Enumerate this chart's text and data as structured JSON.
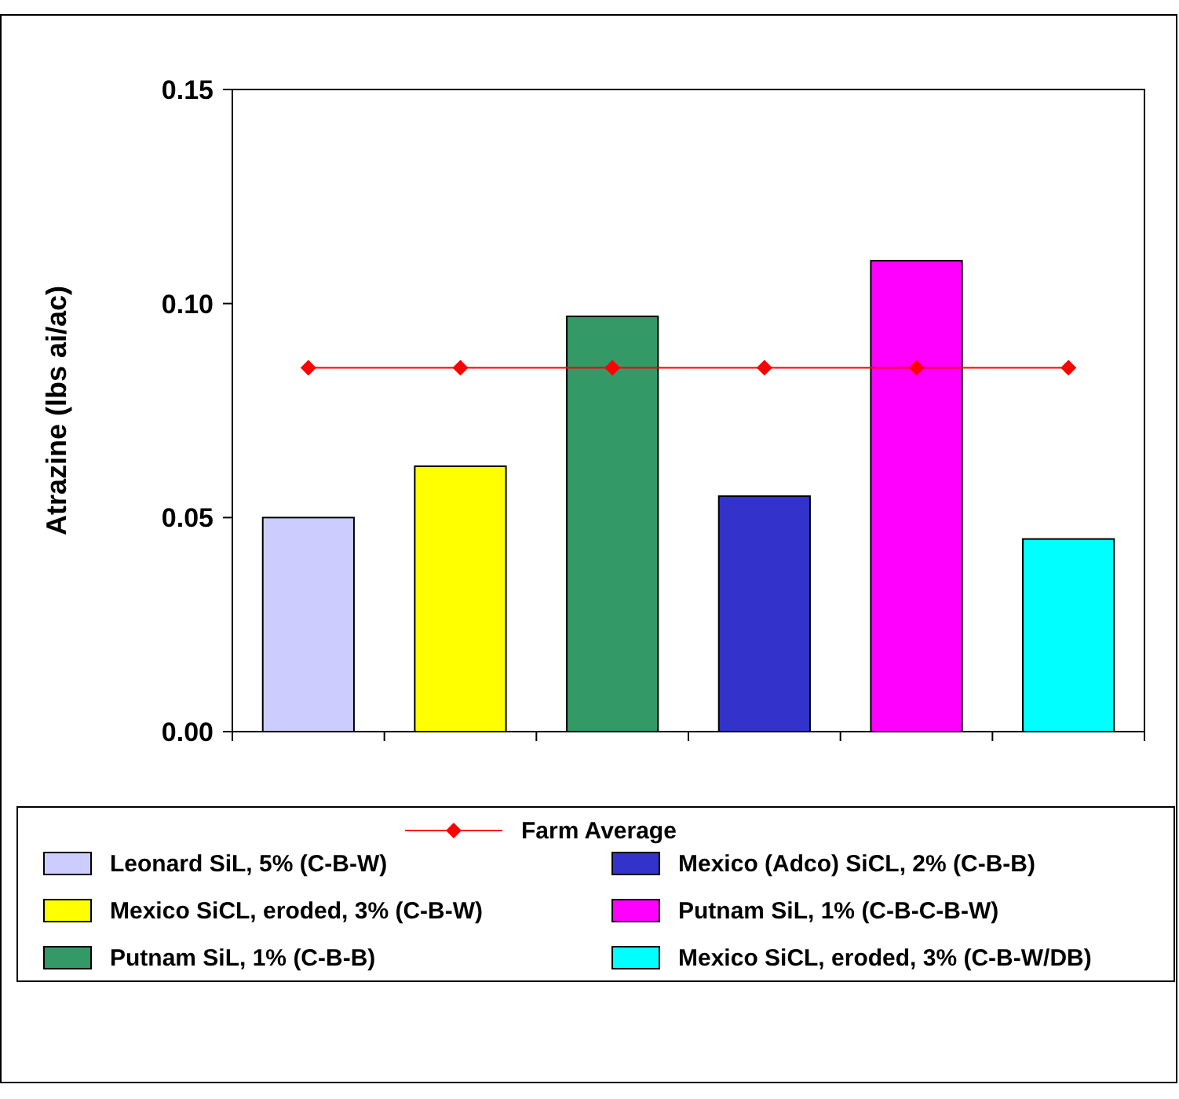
{
  "chart_data": {
    "type": "bar",
    "ylabel": "Atrazine (lbs ai/ac)",
    "categories": [
      null,
      null,
      null,
      null,
      null,
      null
    ],
    "stacked": true,
    "series": [
      {
        "name": "Leonard SiL, 5%  (C-B-W)",
        "color": "#ccccff",
        "values": [
          0.05,
          null,
          null,
          null,
          null,
          null
        ]
      },
      {
        "name": "Mexico SiCL, eroded, 3%  (C-B-W)",
        "color": "#ffff00",
        "values": [
          null,
          0.062,
          null,
          null,
          null,
          null
        ]
      },
      {
        "name": "Putnam SiL, 1%  (C-B-B)",
        "color": "#339966",
        "values": [
          null,
          null,
          0.097,
          null,
          null,
          null
        ]
      },
      {
        "name": "Mexico (Adco) SiCL, 2%  (C-B-B)",
        "color": "#3333cc",
        "values": [
          null,
          null,
          null,
          0.055,
          null,
          null
        ]
      },
      {
        "name": "Putnam SiL, 1%  (C-B-C-B-W)",
        "color": "#ff00ff",
        "values": [
          null,
          null,
          null,
          null,
          0.11,
          null
        ]
      },
      {
        "name": "Mexico SiCL, eroded, 3%  (C-B-W/DB)",
        "color": "#00ffff",
        "values": [
          null,
          null,
          null,
          null,
          null,
          0.045
        ]
      }
    ],
    "ref_lines": [
      {
        "axis": "y",
        "value": 0.085,
        "label": "Farm Average",
        "color": "#ff0000",
        "line_style": "solid"
      }
    ],
    "ylim": [
      0,
      0.15
    ],
    "yticks": [
      {
        "value": 0,
        "label": "0.00"
      },
      {
        "value": 0.05,
        "label": "0.05"
      },
      {
        "value": 0.1,
        "label": "0.10"
      },
      {
        "value": 0.15,
        "label": "0.15"
      }
    ],
    "tick_labels": "y",
    "grid": false,
    "legend": "bottom"
  }
}
